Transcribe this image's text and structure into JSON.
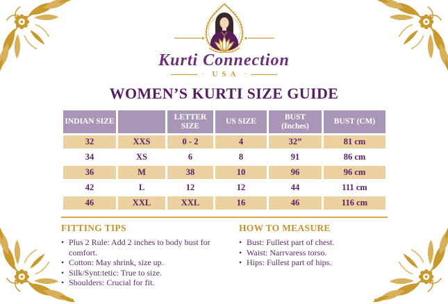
{
  "brand": {
    "name": "Kurti Connection",
    "country": "USA"
  },
  "title": "WOMEN’S KURTI SIZE GUIDE",
  "table": {
    "headers": [
      "INDIAN SIZE",
      "",
      "LETTER SIZE",
      "US SIZE",
      "BUST (Inches)",
      "BUST (CM)"
    ],
    "rows": [
      [
        "32",
        "XXS",
        "0 - 2",
        "4",
        "32”",
        "81 cm"
      ],
      [
        "34",
        "XS",
        "6",
        "8",
        "91",
        "86 cm"
      ],
      [
        "36",
        "M",
        "38",
        "10",
        "96",
        "96 cm"
      ],
      [
        "42",
        "L",
        "12",
        "12",
        "44",
        "111 cm"
      ],
      [
        "46",
        "XXL",
        "XXL",
        "16",
        "46",
        "116 cm"
      ]
    ]
  },
  "fitting_tips": {
    "heading": "FITTING TIPS",
    "items": [
      "Plus 2 Rule: Add 2 inches to body bust for comfort.",
      "Cotton: May shrink, size up.",
      "Silk/Synt:tetic: True to size.",
      "Shoulders: Crucial for fit."
    ]
  },
  "how_to_measure": {
    "heading": "HOW TO MEASURE",
    "items": [
      "Bust: Fullest part of chest.",
      "Waist: Narrvaress torso.",
      "Hips: Fullest part of hips."
    ]
  },
  "colors": {
    "gold": "#c9992e",
    "header_bg": "#a996b6",
    "row_tan": "#ebd1a0",
    "text_purple": "#5c2166",
    "title_purple": "#571e63",
    "heading_gold": "#c3922e"
  }
}
